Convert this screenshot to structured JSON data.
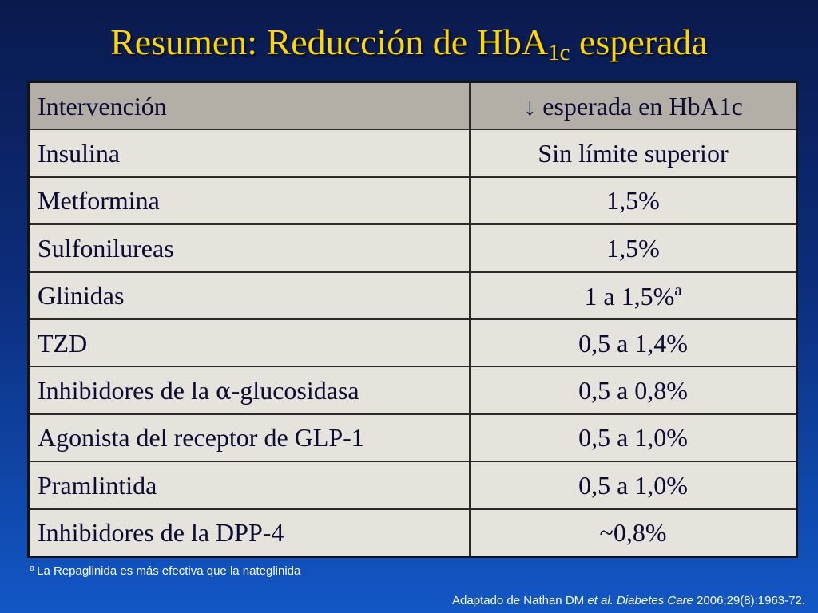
{
  "title": {
    "main": "Resumen: Reducción de HbA",
    "subscript": "1c",
    "suffix": " esperada"
  },
  "table": {
    "header": [
      "Intervención",
      "↓ esperada en HbA1c"
    ],
    "rows": [
      {
        "intervention": "Insulina",
        "reduction": "Sin límite superior"
      },
      {
        "intervention": "Metformina",
        "reduction": "1,5%"
      },
      {
        "intervention": "Sulfonilureas",
        "reduction": "1,5%"
      },
      {
        "intervention": "Glinidas",
        "reduction": "1 a 1,5%",
        "reduction_sup": "a"
      },
      {
        "intervention": "TZD",
        "reduction": "0,5 a 1,4%"
      },
      {
        "intervention_pre": "Inhibidores de la ",
        "intervention_symbol": "α",
        "intervention_post": "-glucosidasa",
        "reduction": "0,5 a 0,8%"
      },
      {
        "intervention": "Agonista del receptor de GLP-1",
        "reduction": "0,5 a 1,0%"
      },
      {
        "intervention": "Pramlintida",
        "reduction": "0,5 a 1,0%"
      },
      {
        "intervention": "Inhibidores de la DPP-4",
        "reduction": "~0,8%"
      }
    ]
  },
  "footnote": {
    "marker": "a",
    "text": "La Repaglinida es más efectiva que la nateglinida"
  },
  "source": {
    "prefix": "Adaptado de Nathan DM ",
    "italic": "et al. Diabetes Care",
    "suffix": " 2006;29(8):1963-72."
  }
}
